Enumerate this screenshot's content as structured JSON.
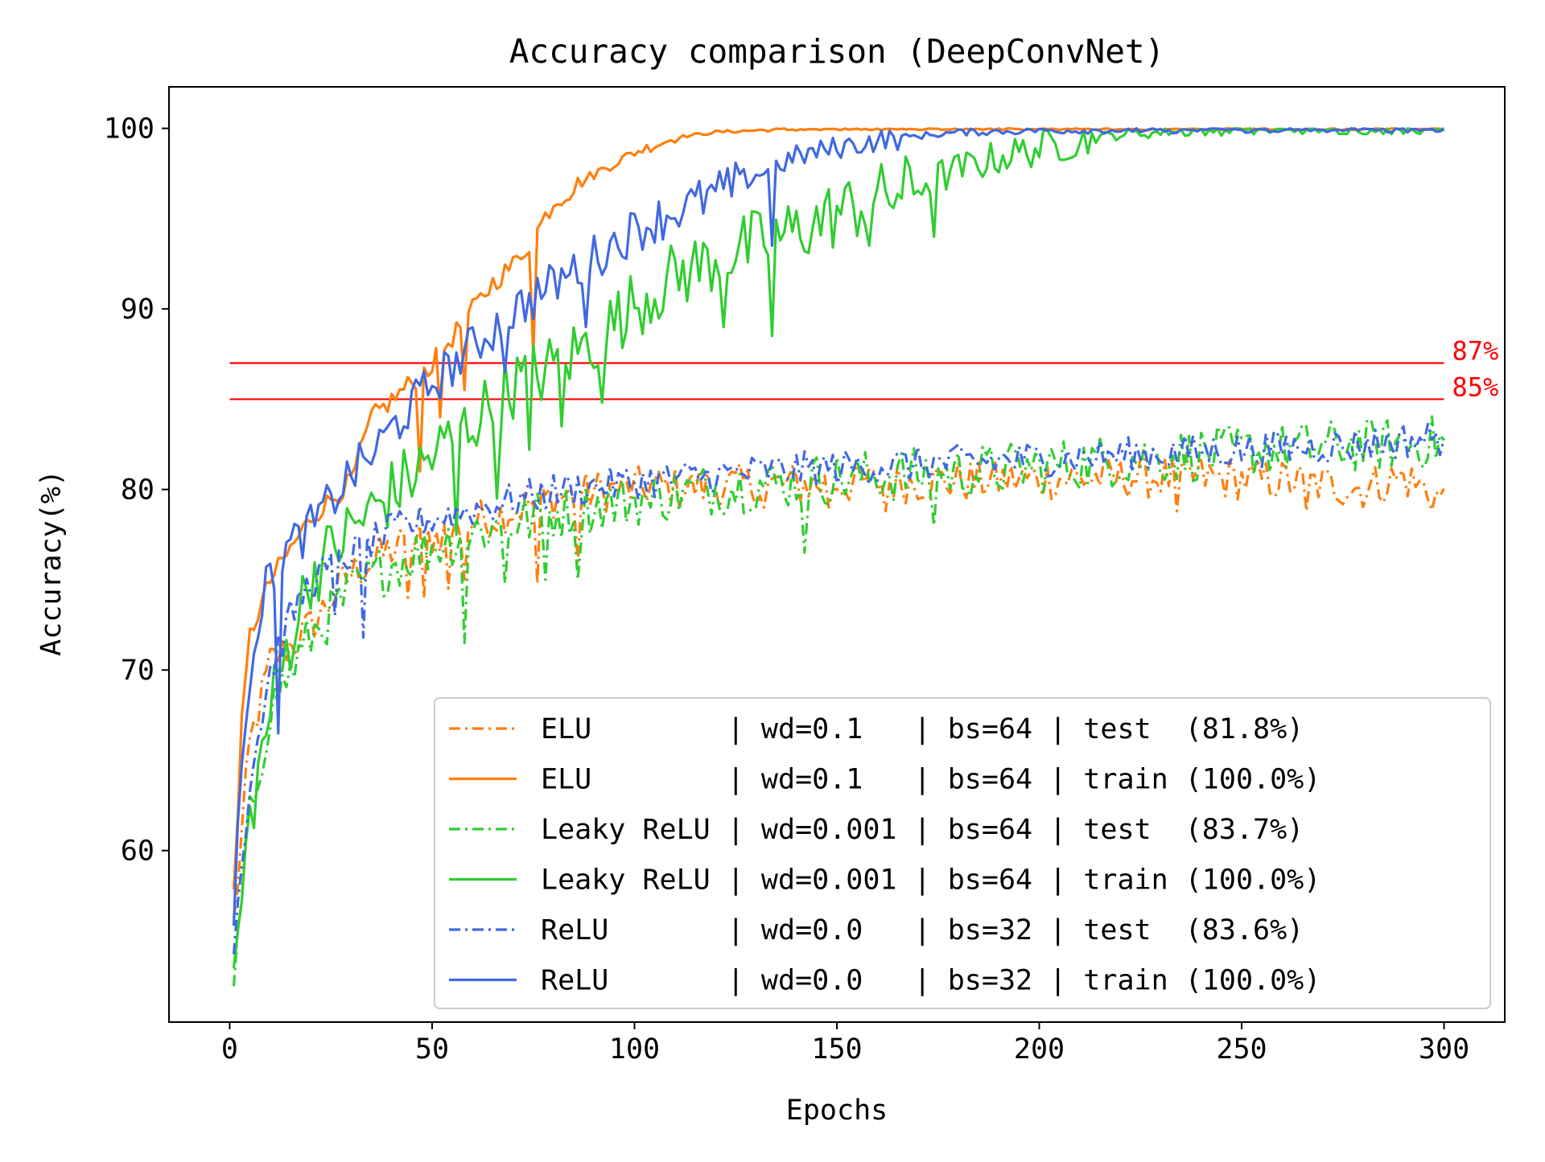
{
  "chart_data": {
    "type": "line",
    "title": "Accuracy comparison (DeepConvNet)",
    "xlabel": "Epochs",
    "ylabel": "Accuracy(%)",
    "xlim": [
      -15,
      315
    ],
    "ylim": [
      50.5,
      102.3
    ],
    "xticks": [
      0,
      50,
      100,
      150,
      200,
      250,
      300
    ],
    "yticks": [
      60,
      70,
      80,
      90,
      100
    ],
    "grid": false,
    "legend_position": "lower-right",
    "reference_lines": [
      {
        "y": 87,
        "label": "87%",
        "color": "#ff0000"
      },
      {
        "y": 85,
        "label": "85%",
        "color": "#ff0000"
      }
    ],
    "series": [
      {
        "name": "ELU        | wd=0.1   | bs=64 | test  (81.8%)",
        "color": "#ff7f0e",
        "dash": "dashdot",
        "points": [
          [
            1,
            56
          ],
          [
            5,
            66
          ],
          [
            10,
            70.5
          ],
          [
            20,
            72.5
          ],
          [
            30,
            75.5
          ],
          [
            40,
            76.8
          ],
          [
            50,
            77.5
          ],
          [
            60,
            78.3
          ],
          [
            70,
            79
          ],
          [
            80,
            79.7
          ],
          [
            90,
            80
          ],
          [
            100,
            80.2
          ],
          [
            120,
            80.3
          ],
          [
            140,
            80.4
          ],
          [
            160,
            80.5
          ],
          [
            180,
            80.6
          ],
          [
            200,
            80.7
          ],
          [
            220,
            80.8
          ],
          [
            240,
            80.8
          ],
          [
            260,
            80.6
          ],
          [
            280,
            80.2
          ],
          [
            290,
            80.8
          ],
          [
            300,
            79.5
          ]
        ],
        "noise": 1.2,
        "dips": [
          [
            44,
            74
          ],
          [
            48,
            74
          ],
          [
            54,
            74.5
          ],
          [
            58,
            75
          ],
          [
            76,
            74.8
          ],
          [
            86,
            76
          ],
          [
            132,
            79
          ],
          [
            148,
            79
          ],
          [
            162,
            78.8
          ],
          [
            234,
            78.8
          ],
          [
            266,
            78.8
          ]
        ]
      },
      {
        "name": "ELU        | wd=0.1   | bs=64 | train (100.0%)",
        "color": "#ff7f0e",
        "dash": "solid",
        "points": [
          [
            1,
            58
          ],
          [
            3,
            67
          ],
          [
            5,
            72
          ],
          [
            10,
            75
          ],
          [
            20,
            78.5
          ],
          [
            30,
            80.5
          ],
          [
            35,
            84
          ],
          [
            40,
            85
          ],
          [
            45,
            86
          ],
          [
            50,
            87
          ],
          [
            55,
            88.5
          ],
          [
            60,
            90
          ],
          [
            65,
            91.5
          ],
          [
            70,
            92.5
          ],
          [
            75,
            94
          ],
          [
            80,
            96
          ],
          [
            90,
            97.5
          ],
          [
            100,
            98.7
          ],
          [
            110,
            99.5
          ],
          [
            120,
            99.8
          ],
          [
            130,
            99.9
          ],
          [
            150,
            100
          ],
          [
            300,
            100
          ]
        ],
        "noise": 0.6,
        "dips": [
          [
            47,
            81
          ],
          [
            52,
            84
          ],
          [
            58,
            85.5
          ],
          [
            75,
            87.5
          ]
        ]
      },
      {
        "name": "Leaky ReLU | wd=0.001 | bs=64 | test  (83.7%)",
        "color": "#32cd32",
        "dash": "dashdot",
        "points": [
          [
            1,
            52.5
          ],
          [
            5,
            62
          ],
          [
            10,
            68
          ],
          [
            20,
            72
          ],
          [
            30,
            74.5
          ],
          [
            40,
            76
          ],
          [
            50,
            77
          ],
          [
            60,
            77.8
          ],
          [
            70,
            78.3
          ],
          [
            80,
            78.8
          ],
          [
            90,
            79.2
          ],
          [
            100,
            79.6
          ],
          [
            120,
            80.2
          ],
          [
            140,
            80.6
          ],
          [
            160,
            80.9
          ],
          [
            180,
            81.1
          ],
          [
            200,
            81.4
          ],
          [
            220,
            81.8
          ],
          [
            240,
            82.1
          ],
          [
            260,
            82.4
          ],
          [
            280,
            82.6
          ],
          [
            300,
            82.8
          ]
        ],
        "noise": 1.5,
        "dips": [
          [
            58,
            71.5
          ],
          [
            68,
            74.8
          ],
          [
            78,
            75
          ],
          [
            86,
            75
          ],
          [
            104,
            79
          ],
          [
            142,
            76.5
          ],
          [
            174,
            78
          ]
        ]
      },
      {
        "name": "Leaky ReLU | wd=0.001 | bs=64 | train (100.0%)",
        "color": "#32cd32",
        "dash": "solid",
        "points": [
          [
            1,
            53
          ],
          [
            5,
            62
          ],
          [
            10,
            68
          ],
          [
            15,
            72
          ],
          [
            20,
            75.5
          ],
          [
            30,
            78
          ],
          [
            40,
            80
          ],
          [
            50,
            82
          ],
          [
            60,
            84
          ],
          [
            70,
            86
          ],
          [
            80,
            87
          ],
          [
            90,
            88.5
          ],
          [
            100,
            90.5
          ],
          [
            110,
            92
          ],
          [
            120,
            93
          ],
          [
            130,
            93.8
          ],
          [
            140,
            94.5
          ],
          [
            150,
            95.5
          ],
          [
            160,
            96.3
          ],
          [
            170,
            97
          ],
          [
            180,
            97.8
          ],
          [
            190,
            98.5
          ],
          [
            200,
            99
          ],
          [
            210,
            99.4
          ],
          [
            220,
            99.7
          ],
          [
            240,
            99.9
          ],
          [
            260,
            100
          ],
          [
            300,
            100
          ]
        ],
        "noise": 2.0,
        "dips": [
          [
            56,
            77.5
          ],
          [
            66,
            79.5
          ],
          [
            74,
            82.2
          ],
          [
            82,
            83.5
          ],
          [
            92,
            84.8
          ],
          [
            98,
            88.8
          ],
          [
            122,
            89
          ],
          [
            134,
            88.5
          ],
          [
            158,
            93.5
          ],
          [
            174,
            94
          ]
        ]
      },
      {
        "name": "ReLU       | wd=0.0   | bs=32 | test  (83.6%)",
        "color": "#4169e1",
        "dash": "dashdot",
        "points": [
          [
            1,
            55
          ],
          [
            5,
            64
          ],
          [
            10,
            70
          ],
          [
            15,
            73
          ],
          [
            20,
            75
          ],
          [
            30,
            76.5
          ],
          [
            40,
            77.8
          ],
          [
            50,
            78.5
          ],
          [
            60,
            79
          ],
          [
            70,
            79.5
          ],
          [
            80,
            80
          ],
          [
            100,
            80.5
          ],
          [
            120,
            80.9
          ],
          [
            140,
            81.2
          ],
          [
            160,
            81.4
          ],
          [
            180,
            81.6
          ],
          [
            200,
            81.8
          ],
          [
            220,
            82
          ],
          [
            240,
            82.2
          ],
          [
            260,
            82.4
          ],
          [
            280,
            82.6
          ],
          [
            300,
            83
          ]
        ],
        "noise": 1.0,
        "dips": [
          [
            33,
            71.8
          ],
          [
            26,
            73
          ]
        ]
      },
      {
        "name": "ReLU       | wd=0.0   | bs=32 | train (100.0%)",
        "color": "#4169e1",
        "dash": "solid",
        "points": [
          [
            1,
            55
          ],
          [
            3,
            66
          ],
          [
            6,
            72
          ],
          [
            10,
            75.5
          ],
          [
            15,
            77
          ],
          [
            20,
            78
          ],
          [
            30,
            81
          ],
          [
            35,
            82
          ],
          [
            40,
            83.5
          ],
          [
            50,
            86
          ],
          [
            60,
            88
          ],
          [
            70,
            90
          ],
          [
            80,
            91.5
          ],
          [
            90,
            93
          ],
          [
            100,
            94.5
          ],
          [
            110,
            95.5
          ],
          [
            120,
            96.5
          ],
          [
            130,
            97.5
          ],
          [
            140,
            98.5
          ],
          [
            150,
            99
          ],
          [
            160,
            99.4
          ],
          [
            180,
            99.8
          ],
          [
            200,
            99.9
          ],
          [
            300,
            100
          ]
        ],
        "noise": 1.3,
        "dips": [
          [
            12,
            66.5
          ],
          [
            68,
            86.5
          ],
          [
            88,
            89
          ],
          [
            134,
            93.5
          ]
        ]
      }
    ]
  }
}
